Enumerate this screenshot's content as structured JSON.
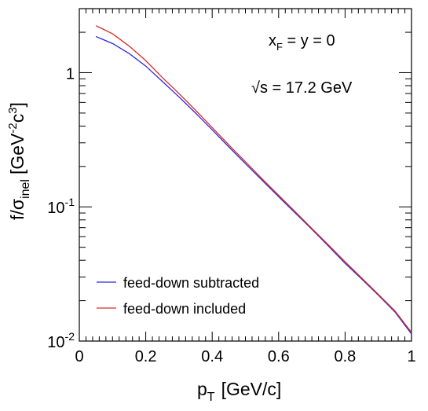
{
  "chart_data": {
    "type": "line",
    "xlabel_main": "p",
    "xlabel_sub": "T",
    "xlabel_rest": "[GeV/c]",
    "ylabel_main": "f/σ",
    "ylabel_sub": "inel",
    "ylabel_unit_open": "[GeV",
    "ylabel_unit_exp1": "-2",
    "ylabel_unit_mid": "c",
    "ylabel_unit_exp2": "3",
    "ylabel_unit_close": "]",
    "xlim": [
      0,
      1
    ],
    "ylim": [
      0.01,
      3
    ],
    "yscale": "log",
    "x_ticks": [
      "0",
      "0.2",
      "0.4",
      "0.6",
      "0.8",
      "1"
    ],
    "y_ticks": [
      {
        "base": "10",
        "exp": "-2"
      },
      {
        "base": "10",
        "exp": "-1"
      },
      {
        "base": "1",
        "exp": ""
      }
    ],
    "annotation1": {
      "main": "x",
      "sub": "F",
      "rest": " = y = 0"
    },
    "annotation2": {
      "sqrt": "√",
      "rest": "s = 17.2 GeV"
    },
    "legend_position": "bottom-left",
    "series": [
      {
        "name": "feed-down subtracted",
        "color": "#2a2ad8",
        "x": [
          0.05,
          0.1,
          0.15,
          0.2,
          0.25,
          0.3,
          0.35,
          0.4,
          0.45,
          0.5,
          0.55,
          0.6,
          0.65,
          0.7,
          0.75,
          0.8,
          0.85,
          0.9,
          0.95,
          1.0
        ],
        "y": [
          1.86,
          1.65,
          1.39,
          1.12,
          0.86,
          0.66,
          0.5,
          0.375,
          0.28,
          0.21,
          0.158,
          0.119,
          0.09,
          0.068,
          0.051,
          0.038,
          0.029,
          0.022,
          0.0165,
          0.0113
        ]
      },
      {
        "name": "feed-down included",
        "color": "#d82a2a",
        "x": [
          0.05,
          0.1,
          0.15,
          0.2,
          0.25,
          0.3,
          0.35,
          0.4,
          0.45,
          0.5,
          0.55,
          0.6,
          0.65,
          0.7,
          0.75,
          0.8,
          0.85,
          0.9,
          0.95,
          1.0
        ],
        "y": [
          2.24,
          1.95,
          1.58,
          1.23,
          0.92,
          0.7,
          0.525,
          0.39,
          0.29,
          0.217,
          0.162,
          0.122,
          0.092,
          0.069,
          0.052,
          0.039,
          0.0295,
          0.0223,
          0.0168,
          0.0116
        ]
      }
    ]
  }
}
